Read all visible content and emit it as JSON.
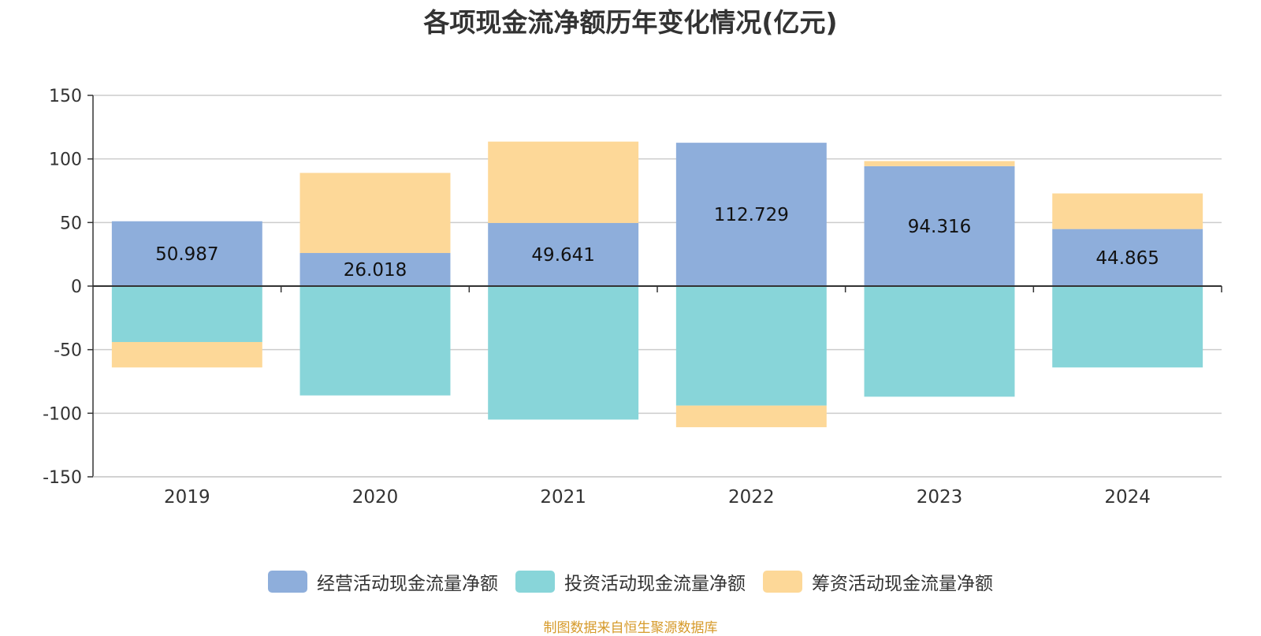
{
  "chart_data": {
    "type": "bar",
    "stacked": true,
    "title": "各项现金流净额历年变化情况(亿元)",
    "categories": [
      "2019",
      "2020",
      "2021",
      "2022",
      "2023",
      "2024"
    ],
    "series": [
      {
        "name": "经营活动现金流量净额",
        "color": "#8eaedb",
        "values": [
          50.987,
          26.018,
          49.641,
          112.729,
          94.316,
          44.865
        ],
        "labels": [
          "50.987",
          "26.018",
          "49.641",
          "112.729",
          "94.316",
          "44.865"
        ]
      },
      {
        "name": "投资活动现金流量净额",
        "color": "#88d5d9",
        "values": [
          -44,
          -86,
          -105,
          -94,
          -87,
          -64
        ]
      },
      {
        "name": "筹资活动现金流量净额",
        "color": "#fdd898",
        "values": [
          -20,
          63,
          64,
          -17,
          4,
          28
        ]
      }
    ],
    "ylim": [
      -150,
      150
    ],
    "yticks": [
      "150",
      "100",
      "50",
      "0",
      "-50",
      "-100",
      "-150"
    ],
    "ytick_values": [
      150,
      100,
      50,
      0,
      -50,
      -100,
      -150
    ],
    "grid": true,
    "legend_position": "bottom"
  },
  "source": "制图数据来自恒生聚源数据库"
}
